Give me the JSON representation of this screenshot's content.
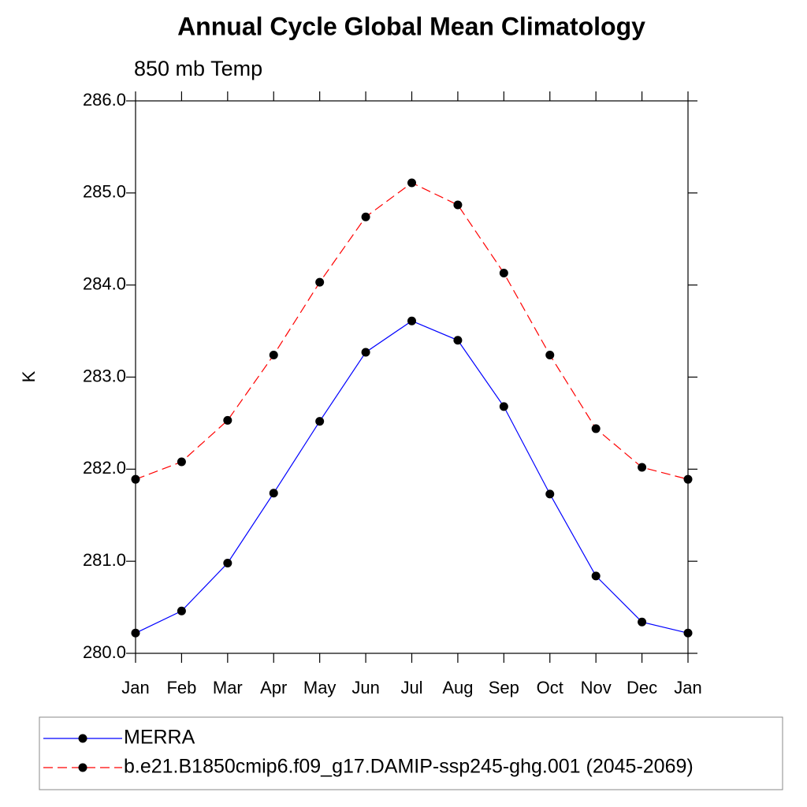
{
  "chart_data": {
    "type": "line",
    "title": "Annual Cycle Global Mean Climatology",
    "subtitle": "850 mb Temp",
    "y_label": "K",
    "categories": [
      "Jan",
      "Feb",
      "Mar",
      "Apr",
      "May",
      "Jun",
      "Jul",
      "Aug",
      "Sep",
      "Oct",
      "Nov",
      "Dec",
      "Jan"
    ],
    "series": [
      {
        "name": "MERRA",
        "color": "#0000ff",
        "linestyle": "solid",
        "values": [
          280.22,
          280.46,
          280.98,
          281.74,
          282.52,
          283.27,
          283.61,
          283.4,
          282.68,
          281.73,
          280.84,
          280.34,
          280.22
        ]
      },
      {
        "name": "b.e21.B1850cmip6.f09_g17.DAMIP-ssp245-ghg.001 (2045-2069)",
        "color": "#ff0000",
        "linestyle": "dashed",
        "values": [
          281.89,
          282.08,
          282.53,
          283.24,
          284.03,
          284.74,
          285.11,
          284.87,
          284.13,
          283.24,
          282.44,
          282.02,
          281.89
        ]
      }
    ],
    "ylim": [
      280,
      286
    ],
    "yticks": [
      {
        "value": 280,
        "label": "280.0"
      },
      {
        "value": 281,
        "label": "281.0"
      },
      {
        "value": 282,
        "label": "282.0"
      },
      {
        "value": 283,
        "label": "283.0"
      },
      {
        "value": 284,
        "label": "284.0"
      },
      {
        "value": 285,
        "label": "285.0"
      },
      {
        "value": 286,
        "label": "286.0"
      }
    ],
    "legend": "bottom"
  }
}
